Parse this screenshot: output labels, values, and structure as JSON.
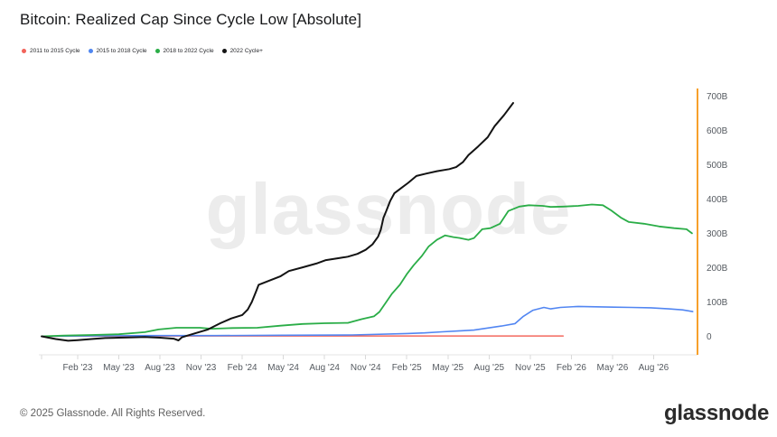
{
  "title": "Bitcoin: Realized Cap Since Cycle Low [Absolute]",
  "watermark": "glassnode",
  "footer": {
    "copyright": "© 2025 Glassnode. All Rights Reserved.",
    "brand": "glassnode"
  },
  "legend": {
    "items": [
      {
        "label": "2011 to 2015 Cycle",
        "color": "#f2635a"
      },
      {
        "label": "2015 to 2018 Cycle",
        "color": "#4f86f0"
      },
      {
        "label": "2018 to 2022 Cycle",
        "color": "#2aad47"
      },
      {
        "label": "2022 Cycle+",
        "color": "#141414"
      }
    ]
  },
  "chart_data": {
    "type": "line",
    "title": "Bitcoin: Realized Cap Since Cycle Low [Absolute]",
    "x_unit": "months since Feb 2023 (each cycle series aligned to its cycle low; axis labeled with 2022-cycle dates)",
    "y_unit": "USD billions (realized cap change since cycle low)",
    "grid": false,
    "legend_position": "top-left",
    "x_axis": {
      "lim": [
        -2.7,
        45.2
      ],
      "ticks": [
        {
          "m": 0,
          "label": "Feb '23"
        },
        {
          "m": 3,
          "label": "May '23"
        },
        {
          "m": 6,
          "label": "Aug '23"
        },
        {
          "m": 9,
          "label": "Nov '23"
        },
        {
          "m": 12,
          "label": "Feb '24"
        },
        {
          "m": 15,
          "label": "May '24"
        },
        {
          "m": 18,
          "label": "Aug '24"
        },
        {
          "m": 21,
          "label": "Nov '24"
        },
        {
          "m": 24,
          "label": "Feb '25"
        },
        {
          "m": 27,
          "label": "May '25"
        },
        {
          "m": 30,
          "label": "Aug '25"
        },
        {
          "m": 33,
          "label": "Nov '25"
        },
        {
          "m": 36,
          "label": "Feb '26"
        },
        {
          "m": 39,
          "label": "May '26"
        },
        {
          "m": 42,
          "label": "Aug '26"
        }
      ]
    },
    "y_axis": {
      "lim": [
        -54,
        722
      ],
      "ticks": [
        {
          "v": 0,
          "label": "0"
        },
        {
          "v": 100,
          "label": "100B"
        },
        {
          "v": 200,
          "label": "200B"
        },
        {
          "v": 300,
          "label": "300B"
        },
        {
          "v": 400,
          "label": "400B"
        },
        {
          "v": 500,
          "label": "500B"
        },
        {
          "v": 600,
          "label": "600B"
        },
        {
          "v": 700,
          "label": "700B"
        }
      ]
    },
    "axis_style": {
      "y_line_color": "#f7a02b",
      "x_line_color": "#e6e6e6",
      "tick_color": "#d9d9d9",
      "label_color": "#555a60"
    },
    "series": [
      {
        "name": "2011 to 2015 Cycle",
        "color": "#f4695f",
        "line_width": 1.5,
        "points": [
          [
            -2.63,
            0
          ],
          [
            0,
            0.5
          ],
          [
            10,
            1
          ],
          [
            20,
            1
          ],
          [
            30,
            1
          ],
          [
            35.4,
            1
          ]
        ]
      },
      {
        "name": "2015 to 2018 Cycle",
        "color": "#5286f2",
        "line_width": 1.6,
        "points": [
          [
            -2.63,
            0
          ],
          [
            0,
            1
          ],
          [
            5,
            2
          ],
          [
            10,
            2
          ],
          [
            15,
            3
          ],
          [
            20,
            4
          ],
          [
            24,
            8
          ],
          [
            25.3,
            10
          ],
          [
            26.6,
            13
          ],
          [
            27.9,
            16
          ],
          [
            28.9,
            18
          ],
          [
            29.9,
            24
          ],
          [
            30.9,
            30
          ],
          [
            31.9,
            37
          ],
          [
            32.5,
            58
          ],
          [
            33.2,
            76
          ],
          [
            34,
            84
          ],
          [
            34.5,
            80
          ],
          [
            35.2,
            84
          ],
          [
            36.5,
            87
          ],
          [
            37.8,
            86
          ],
          [
            39.1,
            85
          ],
          [
            40.4,
            84
          ],
          [
            41.8,
            83
          ],
          [
            43.1,
            80
          ],
          [
            44.1,
            77
          ],
          [
            44.85,
            72
          ]
        ]
      },
      {
        "name": "2018 to 2022 Cycle",
        "color": "#2aad47",
        "line_width": 1.8,
        "points": [
          [
            -2.63,
            0
          ],
          [
            -1,
            2
          ],
          [
            1,
            4
          ],
          [
            3,
            6
          ],
          [
            4.9,
            12
          ],
          [
            5.9,
            20
          ],
          [
            7.2,
            25
          ],
          [
            8.9,
            25
          ],
          [
            9.8,
            22
          ],
          [
            11.3,
            24
          ],
          [
            13.1,
            25
          ],
          [
            14.8,
            31
          ],
          [
            16.4,
            36
          ],
          [
            18,
            38
          ],
          [
            19.7,
            39
          ],
          [
            20.7,
            50
          ],
          [
            21.6,
            58
          ],
          [
            22,
            71
          ],
          [
            22.5,
            100
          ],
          [
            22.9,
            123
          ],
          [
            23.5,
            150
          ],
          [
            24,
            181
          ],
          [
            24.5,
            207
          ],
          [
            25.1,
            234
          ],
          [
            25.6,
            262
          ],
          [
            26.2,
            281
          ],
          [
            26.8,
            294
          ],
          [
            27.4,
            289
          ],
          [
            27.9,
            286
          ],
          [
            28.5,
            281
          ],
          [
            28.9,
            286
          ],
          [
            29.5,
            312
          ],
          [
            30.1,
            315
          ],
          [
            30.8,
            328
          ],
          [
            31.4,
            365
          ],
          [
            32.2,
            378
          ],
          [
            32.9,
            382
          ],
          [
            33.9,
            380
          ],
          [
            34.5,
            377
          ],
          [
            35.4,
            378
          ],
          [
            36.5,
            380
          ],
          [
            37.5,
            384
          ],
          [
            38.3,
            382
          ],
          [
            38.9,
            367
          ],
          [
            39.6,
            346
          ],
          [
            40.2,
            333
          ],
          [
            41.3,
            328
          ],
          [
            42.4,
            320
          ],
          [
            43.5,
            315
          ],
          [
            44.4,
            312
          ],
          [
            44.8,
            300
          ]
        ]
      },
      {
        "name": "2022 Cycle+",
        "color": "#131313",
        "line_width": 2,
        "points": [
          [
            -2.63,
            0
          ],
          [
            -1.6,
            -8
          ],
          [
            -0.7,
            -13
          ],
          [
            0,
            -11
          ],
          [
            1,
            -8
          ],
          [
            2,
            -5
          ],
          [
            3,
            -4
          ],
          [
            4,
            -3
          ],
          [
            4.9,
            -2
          ],
          [
            6,
            -4
          ],
          [
            7,
            -7
          ],
          [
            7.35,
            -12
          ],
          [
            7.6,
            -3
          ],
          [
            8.5,
            8
          ],
          [
            9.5,
            20
          ],
          [
            10.4,
            38
          ],
          [
            11.2,
            52
          ],
          [
            12,
            62
          ],
          [
            12.4,
            78
          ],
          [
            12.7,
            100
          ],
          [
            13,
            130
          ],
          [
            13.2,
            150
          ],
          [
            14.1,
            164
          ],
          [
            14.8,
            175
          ],
          [
            15.4,
            190
          ],
          [
            16.4,
            201
          ],
          [
            17.4,
            212
          ],
          [
            18.1,
            222
          ],
          [
            19.1,
            228
          ],
          [
            19.7,
            232
          ],
          [
            20.4,
            240
          ],
          [
            21,
            252
          ],
          [
            21.5,
            268
          ],
          [
            21.9,
            290
          ],
          [
            22.1,
            310
          ],
          [
            22.3,
            345
          ],
          [
            22.5,
            365
          ],
          [
            22.8,
            395
          ],
          [
            23.1,
            417
          ],
          [
            23.6,
            432
          ],
          [
            24.1,
            447
          ],
          [
            24.7,
            467
          ],
          [
            25.4,
            474
          ],
          [
            26.2,
            481
          ],
          [
            27.1,
            487
          ],
          [
            27.6,
            493
          ],
          [
            28.1,
            508
          ],
          [
            28.5,
            528
          ],
          [
            29.2,
            553
          ],
          [
            29.9,
            580
          ],
          [
            30.4,
            612
          ],
          [
            31.1,
            645
          ],
          [
            31.76,
            680
          ]
        ]
      }
    ]
  }
}
